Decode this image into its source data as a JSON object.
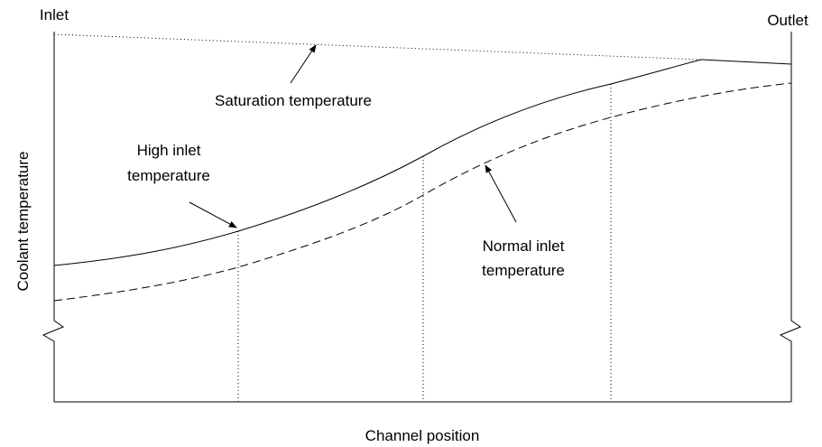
{
  "labels": {
    "inlet": "Inlet",
    "outlet": "Outlet",
    "saturation": "Saturation temperature",
    "high_inlet": [
      "High inlet",
      "temperature"
    ],
    "normal_inlet": [
      "Normal inlet",
      "temperature"
    ],
    "y_axis": "Coolant temperature",
    "x_axis": "Channel position"
  }
}
